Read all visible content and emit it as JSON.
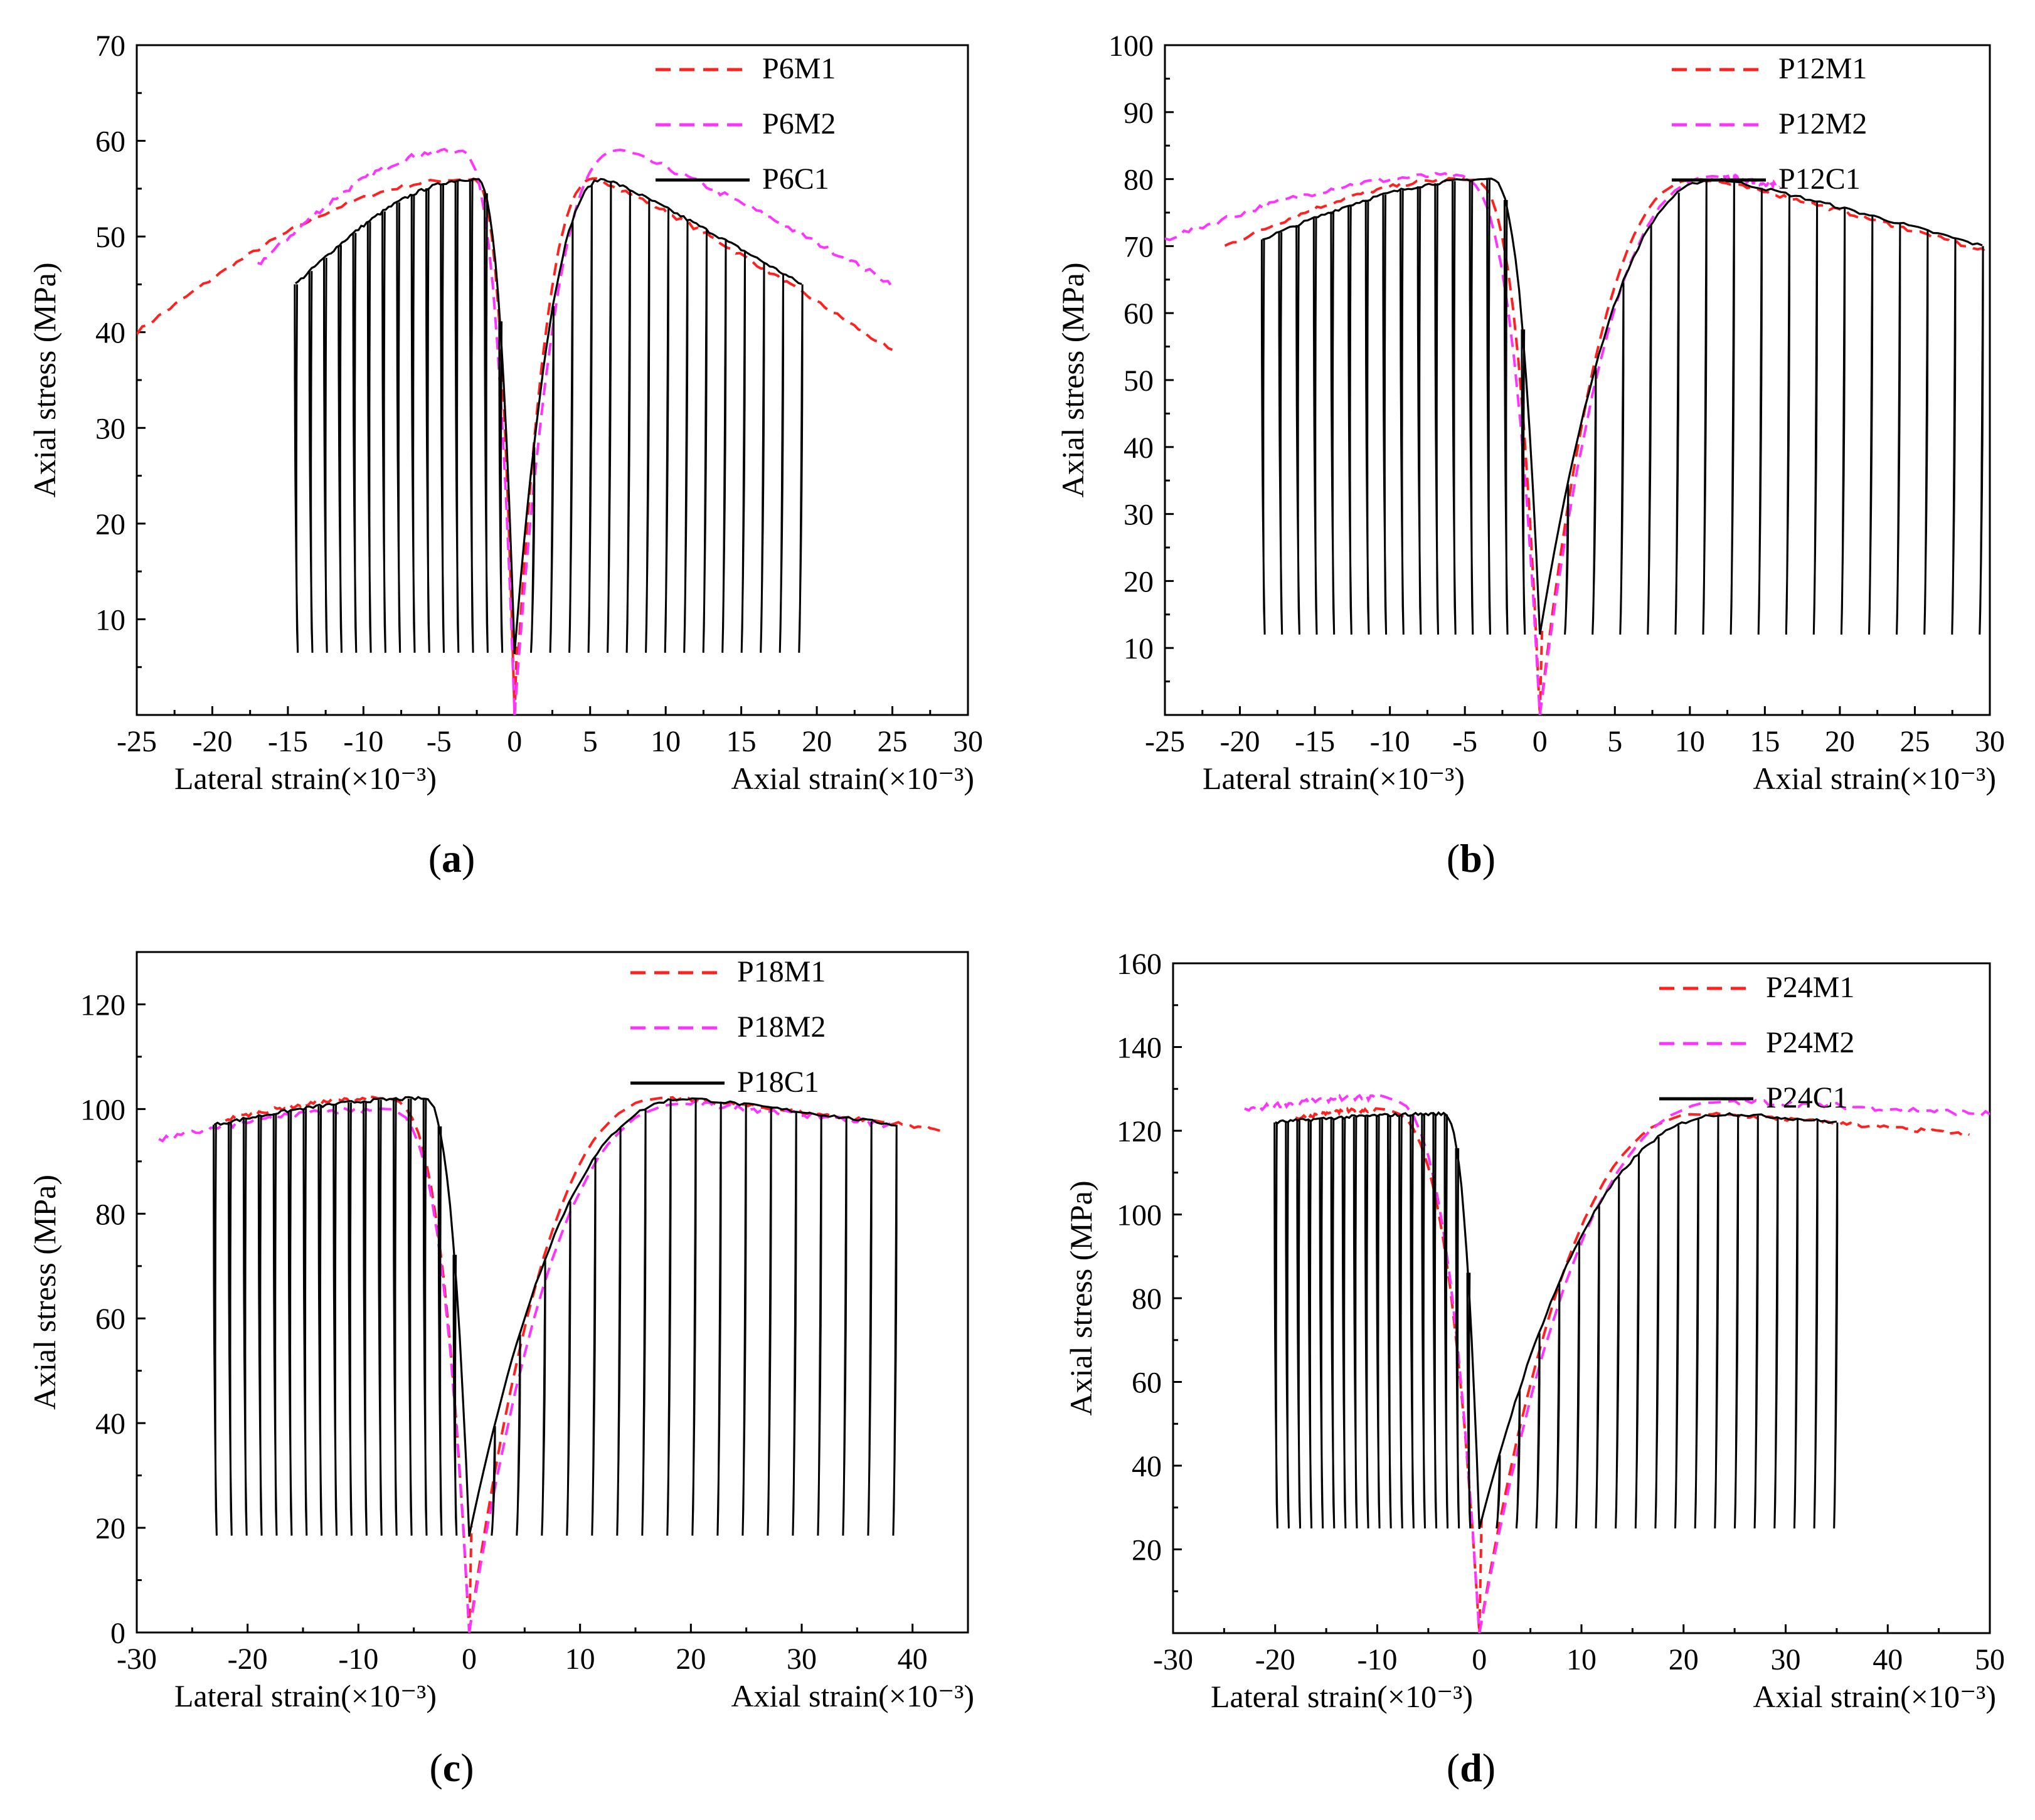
{
  "figure": {
    "background": "#ffffff"
  },
  "colors": {
    "M1": "#ff2020",
    "M2": "#ff33ff",
    "C1": "#000000"
  },
  "chart_data": [
    {
      "panel": "a",
      "panel_label": "a",
      "type": "line",
      "ylabel": "Axial stress (MPa)",
      "xlabel_left": "Lateral strain(×10⁻³)",
      "xlabel_right": "Axial strain(×10⁻³)",
      "xlim": [
        -25,
        30
      ],
      "ylim": [
        0,
        70
      ],
      "xticks": [
        -25,
        -20,
        -15,
        -10,
        -5,
        0,
        5,
        10,
        15,
        20,
        25,
        30
      ],
      "yticks": [
        10,
        20,
        30,
        40,
        50,
        60,
        70
      ],
      "legend": [
        "P6M1",
        "P6M2",
        "P6C1"
      ],
      "params": {
        "peak": 56,
        "lowLoad": 6.5,
        "lat": {
          "x0": -25,
          "y0": 40,
          "m1Peak": [
            -3,
            56
          ],
          "m2Start": [
            -17,
            47
          ],
          "m2Peak": [
            -4,
            59
          ]
        },
        "ax": {
          "peakX": 6,
          "m1End": [
            25,
            38
          ],
          "m2Peak": [
            7,
            59
          ],
          "m2End": [
            25,
            45
          ]
        },
        "c1": {
          "latExtent": -14.5,
          "latEndStress": 45,
          "axExtent": 19,
          "axEndStress": 45,
          "nCycles": 15
        }
      },
      "series": [
        {
          "name": "P6M1",
          "style": "dashed",
          "color": "#ff2020"
        },
        {
          "name": "P6M2",
          "style": "dashed",
          "color": "#ff33ff"
        },
        {
          "name": "P6C1",
          "style": "solid",
          "color": "#000000"
        }
      ]
    },
    {
      "panel": "b",
      "panel_label": "b",
      "type": "line",
      "ylabel": "Axial stress (MPa)",
      "xlabel_left": "Lateral strain(×10⁻³)",
      "xlabel_right": "Axial strain(×10⁻³)",
      "xlim": [
        -25,
        30
      ],
      "ylim": [
        0,
        100
      ],
      "xticks": [
        -25,
        -20,
        -15,
        -10,
        -5,
        0,
        5,
        10,
        15,
        20,
        25,
        30
      ],
      "yticks": [
        10,
        20,
        30,
        40,
        50,
        60,
        70,
        80,
        90,
        100
      ],
      "legend": [
        "P12M1",
        "P12M2",
        "P12C1"
      ],
      "params": {
        "peak": 80,
        "lowLoad": 12,
        "lat": {
          "x0": -21,
          "y0": 70,
          "m1Peak": [
            -5,
            80
          ],
          "m2Start": [
            -25,
            71
          ],
          "m2Peak": [
            -6,
            80.5
          ]
        },
        "ax": {
          "peakX": 12,
          "m1End": [
            30,
            69
          ],
          "m2Peak": [
            12,
            80.5
          ],
          "m2End": [
            16,
            79
          ]
        },
        "c1": {
          "latExtent": -18.5,
          "latEndStress": 71,
          "axExtent": 29.5,
          "axEndStress": 70,
          "nCycles": 16
        }
      },
      "series": [
        {
          "name": "P12M1",
          "style": "dashed",
          "color": "#ff2020"
        },
        {
          "name": "P12M2",
          "style": "dashed",
          "color": "#ff33ff"
        },
        {
          "name": "P12C1",
          "style": "solid",
          "color": "#000000"
        }
      ]
    },
    {
      "panel": "c",
      "panel_label": "c",
      "type": "line",
      "ylabel": "Axial stress (MPa)",
      "xlabel_left": "Lateral strain(×10⁻³)",
      "xlabel_right": "Axial strain(×10⁻³)",
      "xlim": [
        -30,
        45
      ],
      "ylim": [
        0,
        130
      ],
      "xticks": [
        -30,
        -20,
        -10,
        0,
        10,
        20,
        30,
        40
      ],
      "yticks": [
        0,
        20,
        40,
        60,
        80,
        100,
        120
      ],
      "legend": [
        "P18M1",
        "P18M2",
        "P18C1"
      ],
      "params": {
        "peak": 102,
        "lowLoad": 18.5,
        "lat": {
          "x0": -22,
          "y0": 98,
          "m1Peak": [
            -8,
            102
          ],
          "m2Start": [
            -28,
            94
          ],
          "m2Peak": [
            -8,
            100
          ]
        },
        "ax": {
          "peakX": 20,
          "m1End": [
            43,
            96
          ],
          "m2Peak": [
            20,
            101
          ],
          "m2End": [
            38,
            97
          ]
        },
        "c1": {
          "latExtent": -23,
          "latEndStress": 97,
          "axExtent": 38.5,
          "axEndStress": 97,
          "nCycles": 17
        }
      },
      "series": [
        {
          "name": "P18M1",
          "style": "dashed",
          "color": "#ff2020"
        },
        {
          "name": "P18M2",
          "style": "dashed",
          "color": "#ff33ff"
        },
        {
          "name": "P18C1",
          "style": "solid",
          "color": "#000000"
        }
      ]
    },
    {
      "panel": "d",
      "panel_label": "d",
      "type": "line",
      "ylabel": "Axial stress (MPa)",
      "xlabel_left": "Lateral strain(×10⁻³)",
      "xlabel_right": "Axial strain(×10⁻³)",
      "xlim": [
        -30,
        50
      ],
      "ylim": [
        0,
        160
      ],
      "xticks": [
        -30,
        -20,
        -10,
        0,
        10,
        20,
        30,
        40,
        50
      ],
      "yticks": [
        20,
        40,
        60,
        80,
        100,
        120,
        140,
        160
      ],
      "legend": [
        "P24M1",
        "P24M2",
        "P24C1"
      ],
      "params": {
        "peak": 124,
        "lowLoad": 25,
        "lat": {
          "x0": -18,
          "y0": 123,
          "m1Peak": [
            -10,
            125
          ],
          "m2Start": [
            -23,
            125
          ],
          "m2Peak": [
            -10,
            128
          ]
        },
        "ax": {
          "peakX": 25,
          "m1End": [
            48,
            119
          ],
          "m2Peak": [
            25,
            127
          ],
          "m2End": [
            50,
            124
          ]
        },
        "c1": {
          "latExtent": -20,
          "latEndStress": 122,
          "axExtent": 35,
          "axEndStress": 122,
          "nCycles": 18
        }
      },
      "series": [
        {
          "name": "P24M1",
          "style": "dashed",
          "color": "#ff2020"
        },
        {
          "name": "P24M2",
          "style": "dashed",
          "color": "#ff33ff"
        },
        {
          "name": "P24C1",
          "style": "solid",
          "color": "#000000"
        }
      ]
    }
  ]
}
